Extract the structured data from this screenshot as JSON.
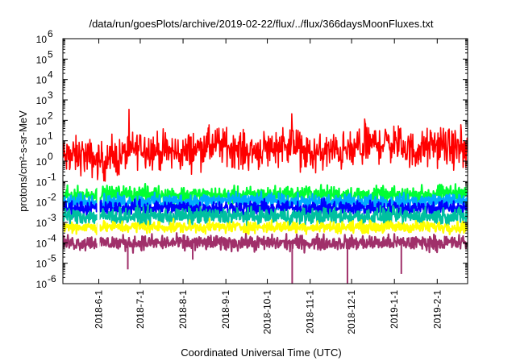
{
  "chart_data": {
    "type": "line",
    "title": "/data/run/goesPlots/archive/2019-02-22/flux/../flux/366daysMoonFluxes.txt",
    "xlabel": "Coordinated Universal Time (UTC)",
    "ylabel": "protons/cm²-s-sr-MeV",
    "yscale": "log",
    "ylim": [
      1e-06,
      1000000.0
    ],
    "xlim": [
      "2018-05-06",
      "2019-02-23"
    ],
    "y_ticks": [
      {
        "exp": "-6"
      },
      {
        "exp": "-5"
      },
      {
        "exp": "-4"
      },
      {
        "exp": "-3"
      },
      {
        "exp": "-2"
      },
      {
        "exp": "-1"
      },
      {
        "exp": "0"
      },
      {
        "exp": "1"
      },
      {
        "exp": "2"
      },
      {
        "exp": "3"
      },
      {
        "exp": "4"
      },
      {
        "exp": "5"
      },
      {
        "exp": "6"
      }
    ],
    "y_tick_base": "10",
    "x_ticks": [
      "2018-6-1",
      "2018-7-1",
      "2018-8-1",
      "2018-9-1",
      "2018-10-1",
      "2018-11-1",
      "2018-12-1",
      "2019-1-1",
      "2019-2-1"
    ],
    "x_tick_dates": [
      "2018-06-01",
      "2018-07-01",
      "2018-08-01",
      "2018-09-01",
      "2018-10-01",
      "2018-11-01",
      "2018-12-01",
      "2019-01-01",
      "2019-02-01"
    ],
    "grid": false,
    "legend": false,
    "series": [
      {
        "color": "#ff0000",
        "x": [
          "2018-05-06",
          "2018-05-20",
          "2018-06-01",
          "2018-06-15",
          "2018-07-01",
          "2018-07-15",
          "2018-08-01",
          "2018-08-15",
          "2018-09-01",
          "2018-09-15",
          "2018-10-01",
          "2018-10-15",
          "2018-11-01",
          "2018-11-15",
          "2018-12-01",
          "2018-12-15",
          "2019-01-01",
          "2019-01-15",
          "2019-02-01",
          "2019-02-15",
          "2019-02-23"
        ],
        "values": [
          1.5,
          2,
          1,
          1.5,
          5,
          3,
          2.5,
          5,
          6,
          3,
          4,
          8,
          2,
          3,
          3,
          7,
          8,
          3,
          6,
          4,
          3
        ]
      },
      {
        "color": "#00ff33",
        "x": [
          "2018-05-06",
          "2018-07-01",
          "2018-09-01",
          "2018-11-01",
          "2019-01-01",
          "2019-02-23"
        ],
        "values": [
          0.02,
          0.025,
          0.02,
          0.025,
          0.02,
          0.03
        ]
      },
      {
        "color": "#00aaff",
        "x": [
          "2018-05-06",
          "2018-07-01",
          "2018-09-01",
          "2018-11-01",
          "2019-01-01",
          "2019-02-23"
        ],
        "values": [
          0.01,
          0.01,
          0.012,
          0.01,
          0.01,
          0.012
        ]
      },
      {
        "color": "#0000ff",
        "x": [
          "2018-05-06",
          "2018-07-01",
          "2018-09-01",
          "2018-11-01",
          "2019-01-01",
          "2019-02-23"
        ],
        "values": [
          0.005,
          0.005,
          0.005,
          0.005,
          0.005,
          0.005
        ]
      },
      {
        "color": "#00c0a0",
        "x": [
          "2018-05-06",
          "2018-07-01",
          "2018-09-01",
          "2018-11-01",
          "2019-01-01",
          "2019-02-23"
        ],
        "values": [
          0.002,
          0.002,
          0.002,
          0.002,
          0.002,
          0.002
        ]
      },
      {
        "color": "#ffff00",
        "x": [
          "2018-05-06",
          "2018-07-01",
          "2018-09-01",
          "2018-11-01",
          "2019-01-01",
          "2019-02-23"
        ],
        "values": [
          0.0006,
          0.0006,
          0.0006,
          0.0006,
          0.0006,
          0.0006
        ]
      },
      {
        "color": "#a0306a",
        "x": [
          "2018-05-06",
          "2018-07-01",
          "2018-09-01",
          "2018-11-01",
          "2019-01-01",
          "2019-02-23"
        ],
        "values": [
          0.0001,
          0.0001,
          0.0001,
          0.0001,
          0.0001,
          0.0001
        ]
      }
    ],
    "annotations_dips": [
      {
        "series_color": "#a0306a",
        "x": "2018-06-22",
        "value": 5e-06
      },
      {
        "series_color": "#a0306a",
        "x": "2018-08-08",
        "value": 1.5e-05
      },
      {
        "series_color": "#a0306a",
        "x": "2018-10-19",
        "value": 1e-06
      },
      {
        "series_color": "#a0306a",
        "x": "2018-11-28",
        "value": 1e-06
      },
      {
        "series_color": "#a0306a",
        "x": "2019-01-06",
        "value": 3e-06
      }
    ]
  }
}
